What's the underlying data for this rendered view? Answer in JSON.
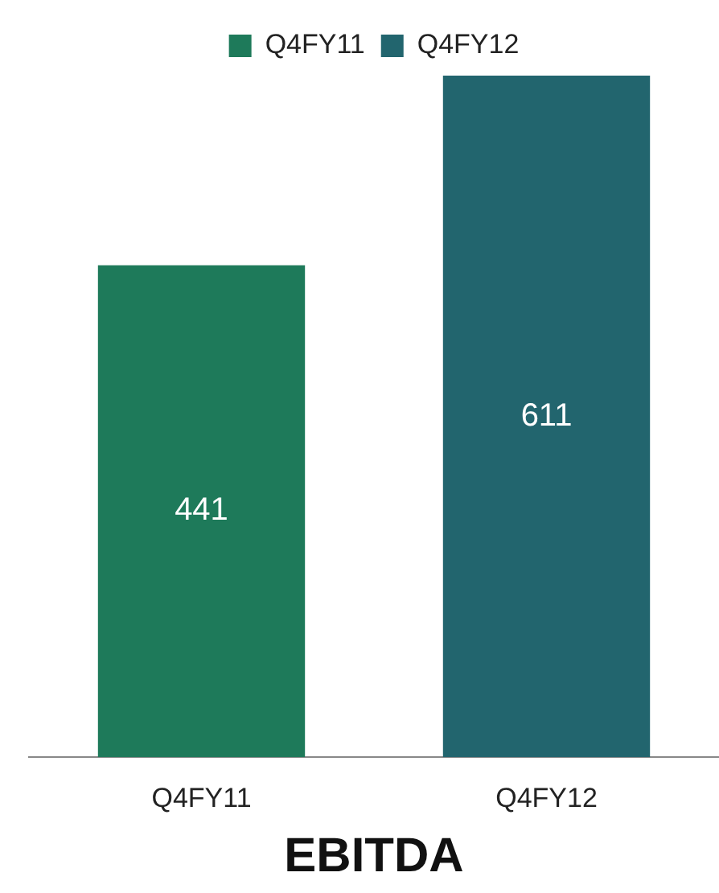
{
  "chart_data": {
    "type": "bar",
    "title": "EBITDA",
    "categories": [
      "Q4FY11",
      "Q4FY12"
    ],
    "series": [
      {
        "name": "Q4FY11",
        "color": "#1e7a5a",
        "values": [
          441,
          null
        ]
      },
      {
        "name": "Q4FY12",
        "color": "#22656e",
        "values": [
          null,
          611
        ]
      }
    ],
    "data_labels": true,
    "legend": "top",
    "grid": false
  }
}
